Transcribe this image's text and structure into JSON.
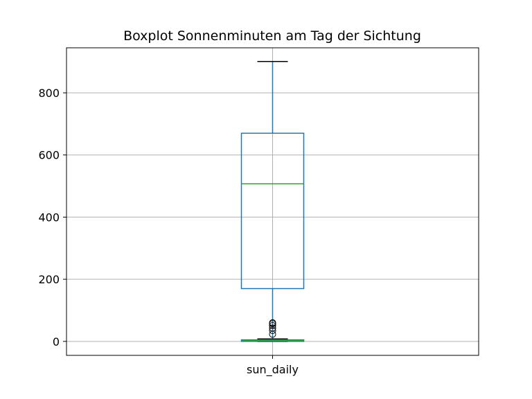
{
  "chart_data": {
    "type": "box",
    "title": "Boxplot Sonnenminuten am Tag der Sichtung",
    "categories": [
      "sun_daily"
    ],
    "ylim": [
      -45,
      945
    ],
    "yticks": [
      0,
      200,
      400,
      600,
      800
    ],
    "grid": true,
    "boxes": [
      {
        "category": "sun_daily",
        "whislo": 0,
        "q1": 170,
        "median": 507,
        "q3": 670,
        "whishi": 901
      }
    ],
    "overlay_box": {
      "whislo": 0,
      "q1": 0,
      "median": 3,
      "q3": 5,
      "whishi": 8,
      "fliers": [
        23,
        35,
        43,
        51,
        57,
        60
      ]
    },
    "colors": {
      "box": "#1f77b4",
      "median": "#2ca02c",
      "whisker": "#1f77b4",
      "cap": "#000000",
      "grid": "#b0b0b0"
    }
  }
}
